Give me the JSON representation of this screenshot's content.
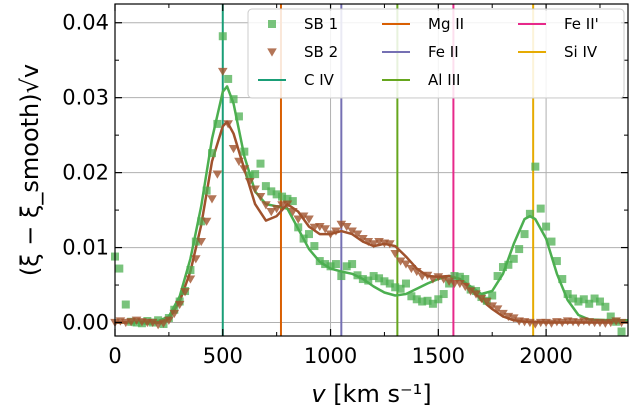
{
  "chart_data": {
    "type": "line",
    "xlabel": "v [km s⁻¹]",
    "ylabel": "(ξ − ξ_smooth)√v",
    "xlim": [
      0,
      2380
    ],
    "ylim": [
      -0.0018,
      0.0425
    ],
    "x_ticks": [
      0,
      500,
      1000,
      1500,
      2000
    ],
    "x_tick_labels": [
      "0",
      "500",
      "1000",
      "1500",
      "2000"
    ],
    "y_ticks": [
      0.0,
      0.01,
      0.02,
      0.03,
      0.04
    ],
    "y_tick_labels": [
      "0.00",
      "0.01",
      "0.02",
      "0.03",
      "0.04"
    ],
    "grid": true,
    "legend": {
      "placement": "top-right",
      "columns": 3
    },
    "scatter_series": [
      {
        "name": "SB 1",
        "marker": "square",
        "color": "#4caf50",
        "points": [
          [
            0,
            0.0088
          ],
          [
            20,
            0.0072
          ],
          [
            50,
            0.0024
          ],
          [
            75,
            0.0001
          ],
          [
            100,
            0.0
          ],
          [
            125,
            -0.0001
          ],
          [
            150,
            0.0002
          ],
          [
            175,
            0.0
          ],
          [
            200,
            0.0003
          ],
          [
            225,
            -0.0002
          ],
          [
            250,
            0.0006
          ],
          [
            275,
            0.0017
          ],
          [
            300,
            0.0028
          ],
          [
            325,
            0.0042
          ],
          [
            350,
            0.007
          ],
          [
            375,
            0.0108
          ],
          [
            400,
            0.0135
          ],
          [
            425,
            0.0176
          ],
          [
            450,
            0.0226
          ],
          [
            475,
            0.0265
          ],
          [
            500,
            0.0382
          ],
          [
            525,
            0.0325
          ],
          [
            550,
            0.0298
          ],
          [
            575,
            0.0275
          ],
          [
            600,
            0.0228
          ],
          [
            625,
            0.0196
          ],
          [
            650,
            0.0198
          ],
          [
            675,
            0.0212
          ],
          [
            700,
            0.0182
          ],
          [
            725,
            0.0175
          ],
          [
            750,
            0.0171
          ],
          [
            775,
            0.0168
          ],
          [
            800,
            0.0165
          ],
          [
            825,
            0.0162
          ],
          [
            850,
            0.0127
          ],
          [
            875,
            0.0112
          ],
          [
            900,
            0.0118
          ],
          [
            925,
            0.0102
          ],
          [
            950,
            0.0082
          ],
          [
            975,
            0.0078
          ],
          [
            1000,
            0.0075
          ],
          [
            1025,
            0.0078
          ],
          [
            1050,
            0.0062
          ],
          [
            1075,
            0.0075
          ],
          [
            1100,
            0.0078
          ],
          [
            1125,
            0.0063
          ],
          [
            1150,
            0.0058
          ],
          [
            1175,
            0.0056
          ],
          [
            1200,
            0.0062
          ],
          [
            1225,
            0.0059
          ],
          [
            1250,
            0.0055
          ],
          [
            1275,
            0.0052
          ],
          [
            1300,
            0.0047
          ],
          [
            1325,
            0.0045
          ],
          [
            1350,
            0.0052
          ],
          [
            1375,
            0.0035
          ],
          [
            1400,
            0.0031
          ],
          [
            1425,
            0.0028
          ],
          [
            1450,
            0.0029
          ],
          [
            1475,
            0.0025
          ],
          [
            1500,
            0.0031
          ],
          [
            1525,
            0.0038
          ],
          [
            1550,
            0.0052
          ],
          [
            1575,
            0.0062
          ],
          [
            1600,
            0.0061
          ],
          [
            1625,
            0.0058
          ],
          [
            1650,
            0.0044
          ],
          [
            1675,
            0.0042
          ],
          [
            1700,
            0.0034
          ],
          [
            1725,
            0.0029
          ],
          [
            1750,
            0.0036
          ],
          [
            1775,
            0.0062
          ],
          [
            1800,
            0.0074
          ],
          [
            1825,
            0.0077
          ],
          [
            1850,
            0.0085
          ],
          [
            1875,
            0.0098
          ],
          [
            1900,
            0.0118
          ],
          [
            1925,
            0.0145
          ],
          [
            1950,
            0.0208
          ],
          [
            1975,
            0.0152
          ],
          [
            2000,
            0.0128
          ],
          [
            2025,
            0.0108
          ],
          [
            2050,
            0.0082
          ],
          [
            2075,
            0.0058
          ],
          [
            2100,
            0.0038
          ],
          [
            2125,
            0.0032
          ],
          [
            2150,
            0.0028
          ],
          [
            2175,
            0.0031
          ],
          [
            2200,
            0.0025
          ],
          [
            2225,
            0.0032
          ],
          [
            2250,
            0.0028
          ],
          [
            2275,
            0.0021
          ],
          [
            2300,
            0.0008
          ],
          [
            2325,
            0.0001
          ],
          [
            2350,
            -0.0012
          ]
        ]
      },
      {
        "name": "SB 2",
        "marker": "triangle-down",
        "color": "#a0522d",
        "points": [
          [
            0,
            0.0
          ],
          [
            25,
            0.0002
          ],
          [
            50,
            0.0
          ],
          [
            75,
            0.0001
          ],
          [
            100,
            0.0003
          ],
          [
            125,
            0.0001
          ],
          [
            150,
            0.0
          ],
          [
            175,
            0.0
          ],
          [
            200,
            -0.0003
          ],
          [
            225,
            -0.0001
          ],
          [
            250,
            0.0003
          ],
          [
            275,
            0.0012
          ],
          [
            300,
            0.0024
          ],
          [
            325,
            0.0041
          ],
          [
            350,
            0.0058
          ],
          [
            375,
            0.0085
          ],
          [
            400,
            0.0108
          ],
          [
            425,
            0.0135
          ],
          [
            450,
            0.0165
          ],
          [
            475,
            0.0198
          ],
          [
            500,
            0.0335
          ],
          [
            525,
            0.0265
          ],
          [
            550,
            0.0232
          ],
          [
            575,
            0.0215
          ],
          [
            600,
            0.0205
          ],
          [
            625,
            0.0188
          ],
          [
            650,
            0.0178
          ],
          [
            675,
            0.0168
          ],
          [
            700,
            0.0157
          ],
          [
            725,
            0.0148
          ],
          [
            750,
            0.0152
          ],
          [
            775,
            0.0157
          ],
          [
            800,
            0.0158
          ],
          [
            825,
            0.0148
          ],
          [
            850,
            0.0138
          ],
          [
            875,
            0.0142
          ],
          [
            900,
            0.0138
          ],
          [
            925,
            0.0127
          ],
          [
            950,
            0.0128
          ],
          [
            975,
            0.0125
          ],
          [
            1000,
            0.0118
          ],
          [
            1025,
            0.0122
          ],
          [
            1050,
            0.0131
          ],
          [
            1075,
            0.0128
          ],
          [
            1100,
            0.0122
          ],
          [
            1125,
            0.0118
          ],
          [
            1150,
            0.0112
          ],
          [
            1175,
            0.0108
          ],
          [
            1200,
            0.0105
          ],
          [
            1225,
            0.0108
          ],
          [
            1250,
            0.0106
          ],
          [
            1275,
            0.0105
          ],
          [
            1300,
            0.0092
          ],
          [
            1325,
            0.0082
          ],
          [
            1350,
            0.0078
          ],
          [
            1375,
            0.0072
          ],
          [
            1400,
            0.0068
          ],
          [
            1425,
            0.0062
          ],
          [
            1450,
            0.0063
          ],
          [
            1475,
            0.0058
          ],
          [
            1500,
            0.0061
          ],
          [
            1525,
            0.0058
          ],
          [
            1550,
            0.0055
          ],
          [
            1575,
            0.0052
          ],
          [
            1600,
            0.0052
          ],
          [
            1625,
            0.0048
          ],
          [
            1650,
            0.0042
          ],
          [
            1675,
            0.0038
          ],
          [
            1700,
            0.0032
          ],
          [
            1725,
            0.0028
          ],
          [
            1750,
            0.0022
          ],
          [
            1775,
            0.0018
          ],
          [
            1800,
            0.0012
          ],
          [
            1825,
            0.0008
          ],
          [
            1850,
            0.0006
          ],
          [
            1875,
            0.0002
          ],
          [
            1900,
            0.0001
          ],
          [
            1925,
            0.0
          ],
          [
            1950,
            -0.0002
          ],
          [
            1975,
            0.0
          ],
          [
            2000,
            0.0
          ],
          [
            2025,
            -0.0001
          ],
          [
            2050,
            0.0001
          ],
          [
            2075,
            0.0
          ],
          [
            2100,
            0.0002
          ],
          [
            2125,
            0.0001
          ],
          [
            2150,
            0.0
          ],
          [
            2175,
            0.0002
          ],
          [
            2200,
            0.0001
          ],
          [
            2225,
            0.0
          ],
          [
            2250,
            0.0
          ],
          [
            2275,
            -0.0001
          ],
          [
            2300,
            0.0
          ],
          [
            2325,
            0.0002
          ],
          [
            2350,
            0.0
          ]
        ]
      }
    ],
    "fit_series": [
      {
        "name": "SB 1 fit",
        "color": "#4caf50",
        "points": [
          [
            0,
            0.0
          ],
          [
            100,
            0.0
          ],
          [
            200,
            0.0002
          ],
          [
            250,
            0.0008
          ],
          [
            300,
            0.0035
          ],
          [
            350,
            0.0085
          ],
          [
            400,
            0.0155
          ],
          [
            450,
            0.0245
          ],
          [
            500,
            0.0308
          ],
          [
            520,
            0.0315
          ],
          [
            550,
            0.0292
          ],
          [
            600,
            0.0222
          ],
          [
            650,
            0.0175
          ],
          [
            700,
            0.0158
          ],
          [
            750,
            0.0155
          ],
          [
            800,
            0.0152
          ],
          [
            850,
            0.0125
          ],
          [
            900,
            0.0098
          ],
          [
            950,
            0.0081
          ],
          [
            1000,
            0.0072
          ],
          [
            1050,
            0.0068
          ],
          [
            1100,
            0.0065
          ],
          [
            1150,
            0.0058
          ],
          [
            1200,
            0.0048
          ],
          [
            1250,
            0.004
          ],
          [
            1300,
            0.0036
          ],
          [
            1350,
            0.0038
          ],
          [
            1400,
            0.0045
          ],
          [
            1450,
            0.0052
          ],
          [
            1500,
            0.0058
          ],
          [
            1550,
            0.0062
          ],
          [
            1600,
            0.0058
          ],
          [
            1650,
            0.0048
          ],
          [
            1700,
            0.0038
          ],
          [
            1750,
            0.0042
          ],
          [
            1800,
            0.0065
          ],
          [
            1850,
            0.0105
          ],
          [
            1900,
            0.0138
          ],
          [
            1925,
            0.0142
          ],
          [
            1950,
            0.0138
          ],
          [
            2000,
            0.0112
          ],
          [
            2050,
            0.0065
          ],
          [
            2100,
            0.003
          ],
          [
            2150,
            0.001
          ],
          [
            2200,
            0.0004
          ],
          [
            2300,
            0.0003
          ],
          [
            2380,
            0.0003
          ]
        ]
      },
      {
        "name": "SB 2 fit",
        "color": "#a0522d",
        "points": [
          [
            0,
            0.0
          ],
          [
            100,
            0.0
          ],
          [
            200,
            0.0
          ],
          [
            250,
            0.0005
          ],
          [
            300,
            0.0028
          ],
          [
            350,
            0.0068
          ],
          [
            400,
            0.013
          ],
          [
            450,
            0.0215
          ],
          [
            500,
            0.0262
          ],
          [
            520,
            0.0268
          ],
          [
            550,
            0.0252
          ],
          [
            600,
            0.0205
          ],
          [
            650,
            0.0158
          ],
          [
            700,
            0.0136
          ],
          [
            750,
            0.0142
          ],
          [
            800,
            0.0158
          ],
          [
            850,
            0.0148
          ],
          [
            900,
            0.0128
          ],
          [
            950,
            0.0118
          ],
          [
            1000,
            0.0118
          ],
          [
            1050,
            0.0122
          ],
          [
            1100,
            0.0118
          ],
          [
            1150,
            0.0108
          ],
          [
            1200,
            0.0102
          ],
          [
            1250,
            0.0105
          ],
          [
            1300,
            0.0102
          ],
          [
            1350,
            0.0088
          ],
          [
            1400,
            0.0072
          ],
          [
            1450,
            0.0062
          ],
          [
            1500,
            0.0061
          ],
          [
            1550,
            0.0062
          ],
          [
            1600,
            0.0058
          ],
          [
            1650,
            0.0045
          ],
          [
            1700,
            0.003
          ],
          [
            1750,
            0.0018
          ],
          [
            1800,
            0.0008
          ],
          [
            1850,
            0.0003
          ],
          [
            1900,
            0.0001
          ],
          [
            2000,
            0.0
          ],
          [
            2380,
            0.0
          ]
        ]
      }
    ],
    "vertical_lines": [
      {
        "name": "C IV",
        "x": 500,
        "color": "#1a9e77"
      },
      {
        "name": "Mg II",
        "x": 770,
        "color": "#d95f02"
      },
      {
        "name": "Fe II",
        "x": 1050,
        "color": "#7570b3"
      },
      {
        "name": "Al III",
        "x": 1310,
        "color": "#66a61e"
      },
      {
        "name": "Fe II'",
        "x": 1570,
        "color": "#e7298a"
      },
      {
        "name": "Si IV",
        "x": 1940,
        "color": "#e6ab02"
      }
    ]
  }
}
